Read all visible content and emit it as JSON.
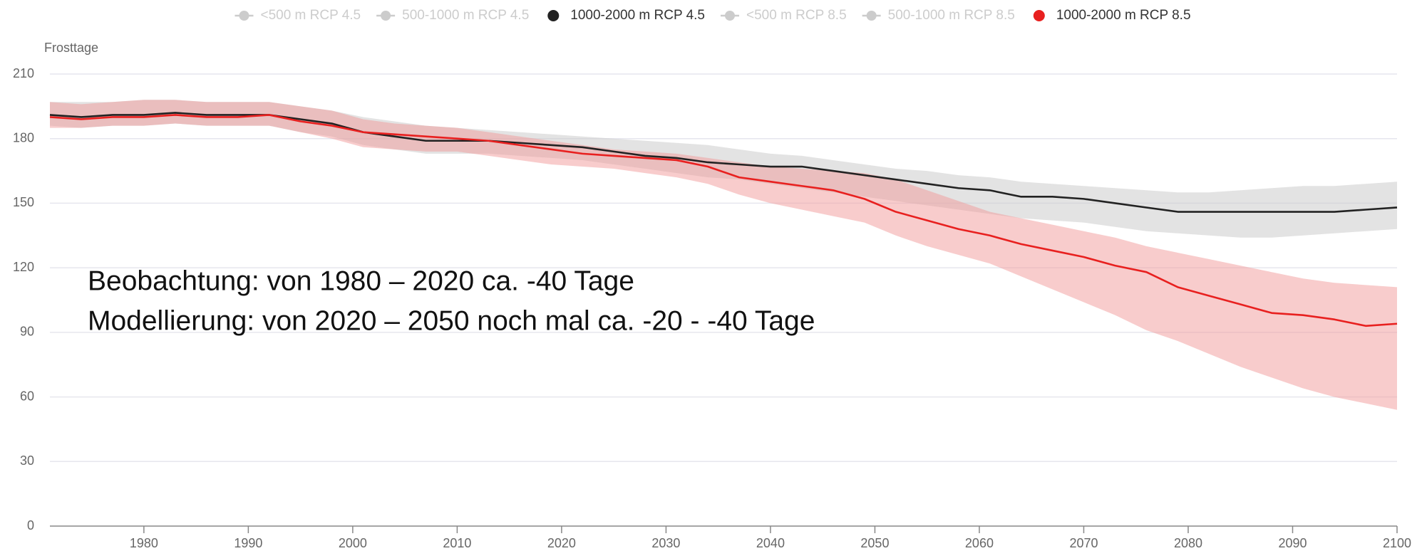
{
  "chart_data": {
    "type": "line",
    "y_axis_label": "Frosttage",
    "annotations": [
      "Beobachtung: von 1980 – 2020 ca. -40 Tage",
      "Modellierung: von 2020 – 2050 noch mal ca. -20 - -40 Tage"
    ],
    "x": [
      1971,
      1974,
      1977,
      1980,
      1983,
      1986,
      1989,
      1992,
      1995,
      1998,
      2001,
      2004,
      2007,
      2010,
      2013,
      2016,
      2019,
      2022,
      2025,
      2028,
      2031,
      2034,
      2037,
      2040,
      2043,
      2046,
      2049,
      2052,
      2055,
      2058,
      2061,
      2064,
      2067,
      2070,
      2073,
      2076,
      2079,
      2082,
      2085,
      2088,
      2091,
      2094,
      2097,
      2100
    ],
    "xlim": [
      1971,
      2100
    ],
    "xticks": [
      1980,
      1990,
      2000,
      2010,
      2020,
      2030,
      2040,
      2050,
      2060,
      2070,
      2080,
      2090,
      2100
    ],
    "ylim": [
      0,
      210
    ],
    "yticks": [
      0,
      30,
      60,
      90,
      120,
      150,
      180,
      210
    ],
    "grid": true,
    "legend": "top",
    "series": [
      {
        "name": "<500 m RCP 4.5",
        "color": "#cccccc",
        "visible": false
      },
      {
        "name": "500-1000 m RCP 4.5",
        "color": "#cccccc",
        "visible": false
      },
      {
        "name": "1000-2000 m RCP 4.5",
        "color": "#222222",
        "band_color": "#c8c8c8",
        "visible": true,
        "values": [
          191,
          190,
          191,
          191,
          192,
          191,
          191,
          191,
          189,
          187,
          183,
          181,
          179,
          179,
          179,
          178,
          177,
          176,
          174,
          172,
          171,
          169,
          168,
          167,
          167,
          165,
          163,
          161,
          159,
          157,
          156,
          153,
          153,
          152,
          150,
          148,
          146,
          146,
          146,
          146,
          146,
          146,
          147,
          148
        ],
        "upper": [
          197,
          197,
          197,
          198,
          198,
          197,
          197,
          197,
          195,
          193,
          190,
          188,
          186,
          185,
          184,
          183,
          182,
          181,
          180,
          179,
          178,
          177,
          175,
          173,
          172,
          170,
          168,
          166,
          165,
          163,
          162,
          160,
          159,
          158,
          157,
          156,
          155,
          155,
          156,
          157,
          158,
          158,
          159,
          160
        ],
        "lower": [
          186,
          185,
          186,
          186,
          187,
          186,
          186,
          186,
          183,
          181,
          177,
          175,
          173,
          173,
          173,
          172,
          171,
          170,
          168,
          166,
          164,
          162,
          161,
          159,
          157,
          155,
          153,
          151,
          149,
          147,
          145,
          143,
          142,
          141,
          139,
          137,
          136,
          135,
          134,
          134,
          135,
          136,
          137,
          138
        ]
      },
      {
        "name": "<500 m RCP 8.5",
        "color": "#cccccc",
        "visible": false
      },
      {
        "name": "500-1000 m RCP 8.5",
        "color": "#cccccc",
        "visible": false
      },
      {
        "name": "1000-2000 m RCP 8.5",
        "color": "#e8201f",
        "band_color": "#f19a9a",
        "visible": true,
        "values": [
          190,
          189,
          190,
          190,
          191,
          190,
          190,
          191,
          188,
          186,
          183,
          182,
          181,
          180,
          179,
          177,
          175,
          173,
          172,
          171,
          170,
          167,
          162,
          160,
          158,
          156,
          152,
          146,
          142,
          138,
          135,
          131,
          128,
          125,
          121,
          118,
          111,
          107,
          103,
          99,
          98,
          96,
          93,
          94
        ],
        "upper": [
          197,
          196,
          197,
          198,
          198,
          197,
          197,
          197,
          195,
          193,
          189,
          187,
          186,
          185,
          183,
          181,
          179,
          177,
          175,
          174,
          173,
          171,
          169,
          167,
          166,
          165,
          164,
          161,
          156,
          151,
          146,
          143,
          140,
          137,
          134,
          130,
          127,
          124,
          121,
          118,
          115,
          113,
          112,
          111
        ],
        "lower": [
          185,
          185,
          186,
          186,
          187,
          186,
          186,
          186,
          183,
          180,
          176,
          175,
          174,
          174,
          172,
          170,
          168,
          167,
          166,
          164,
          162,
          159,
          154,
          150,
          147,
          144,
          141,
          135,
          130,
          126,
          122,
          116,
          110,
          104,
          98,
          91,
          86,
          80,
          74,
          69,
          64,
          60,
          57,
          54
        ]
      }
    ]
  }
}
